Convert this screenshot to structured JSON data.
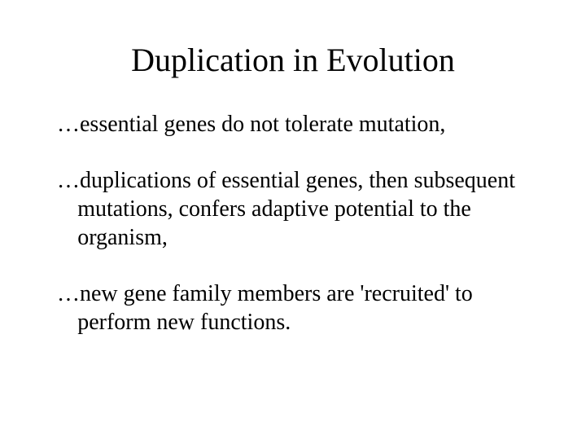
{
  "slide": {
    "title": "Duplication in Evolution",
    "bullets": [
      "…essential genes do not tolerate mutation,",
      "…duplications of essential genes, then subsequent mutations, confers adaptive potential to the organism,",
      "…new gene family members are 'recruited' to perform new functions."
    ]
  },
  "style": {
    "background_color": "#ffffff",
    "text_color": "#000000",
    "font_family": "Times New Roman",
    "title_fontsize": 40,
    "body_fontsize": 28
  }
}
